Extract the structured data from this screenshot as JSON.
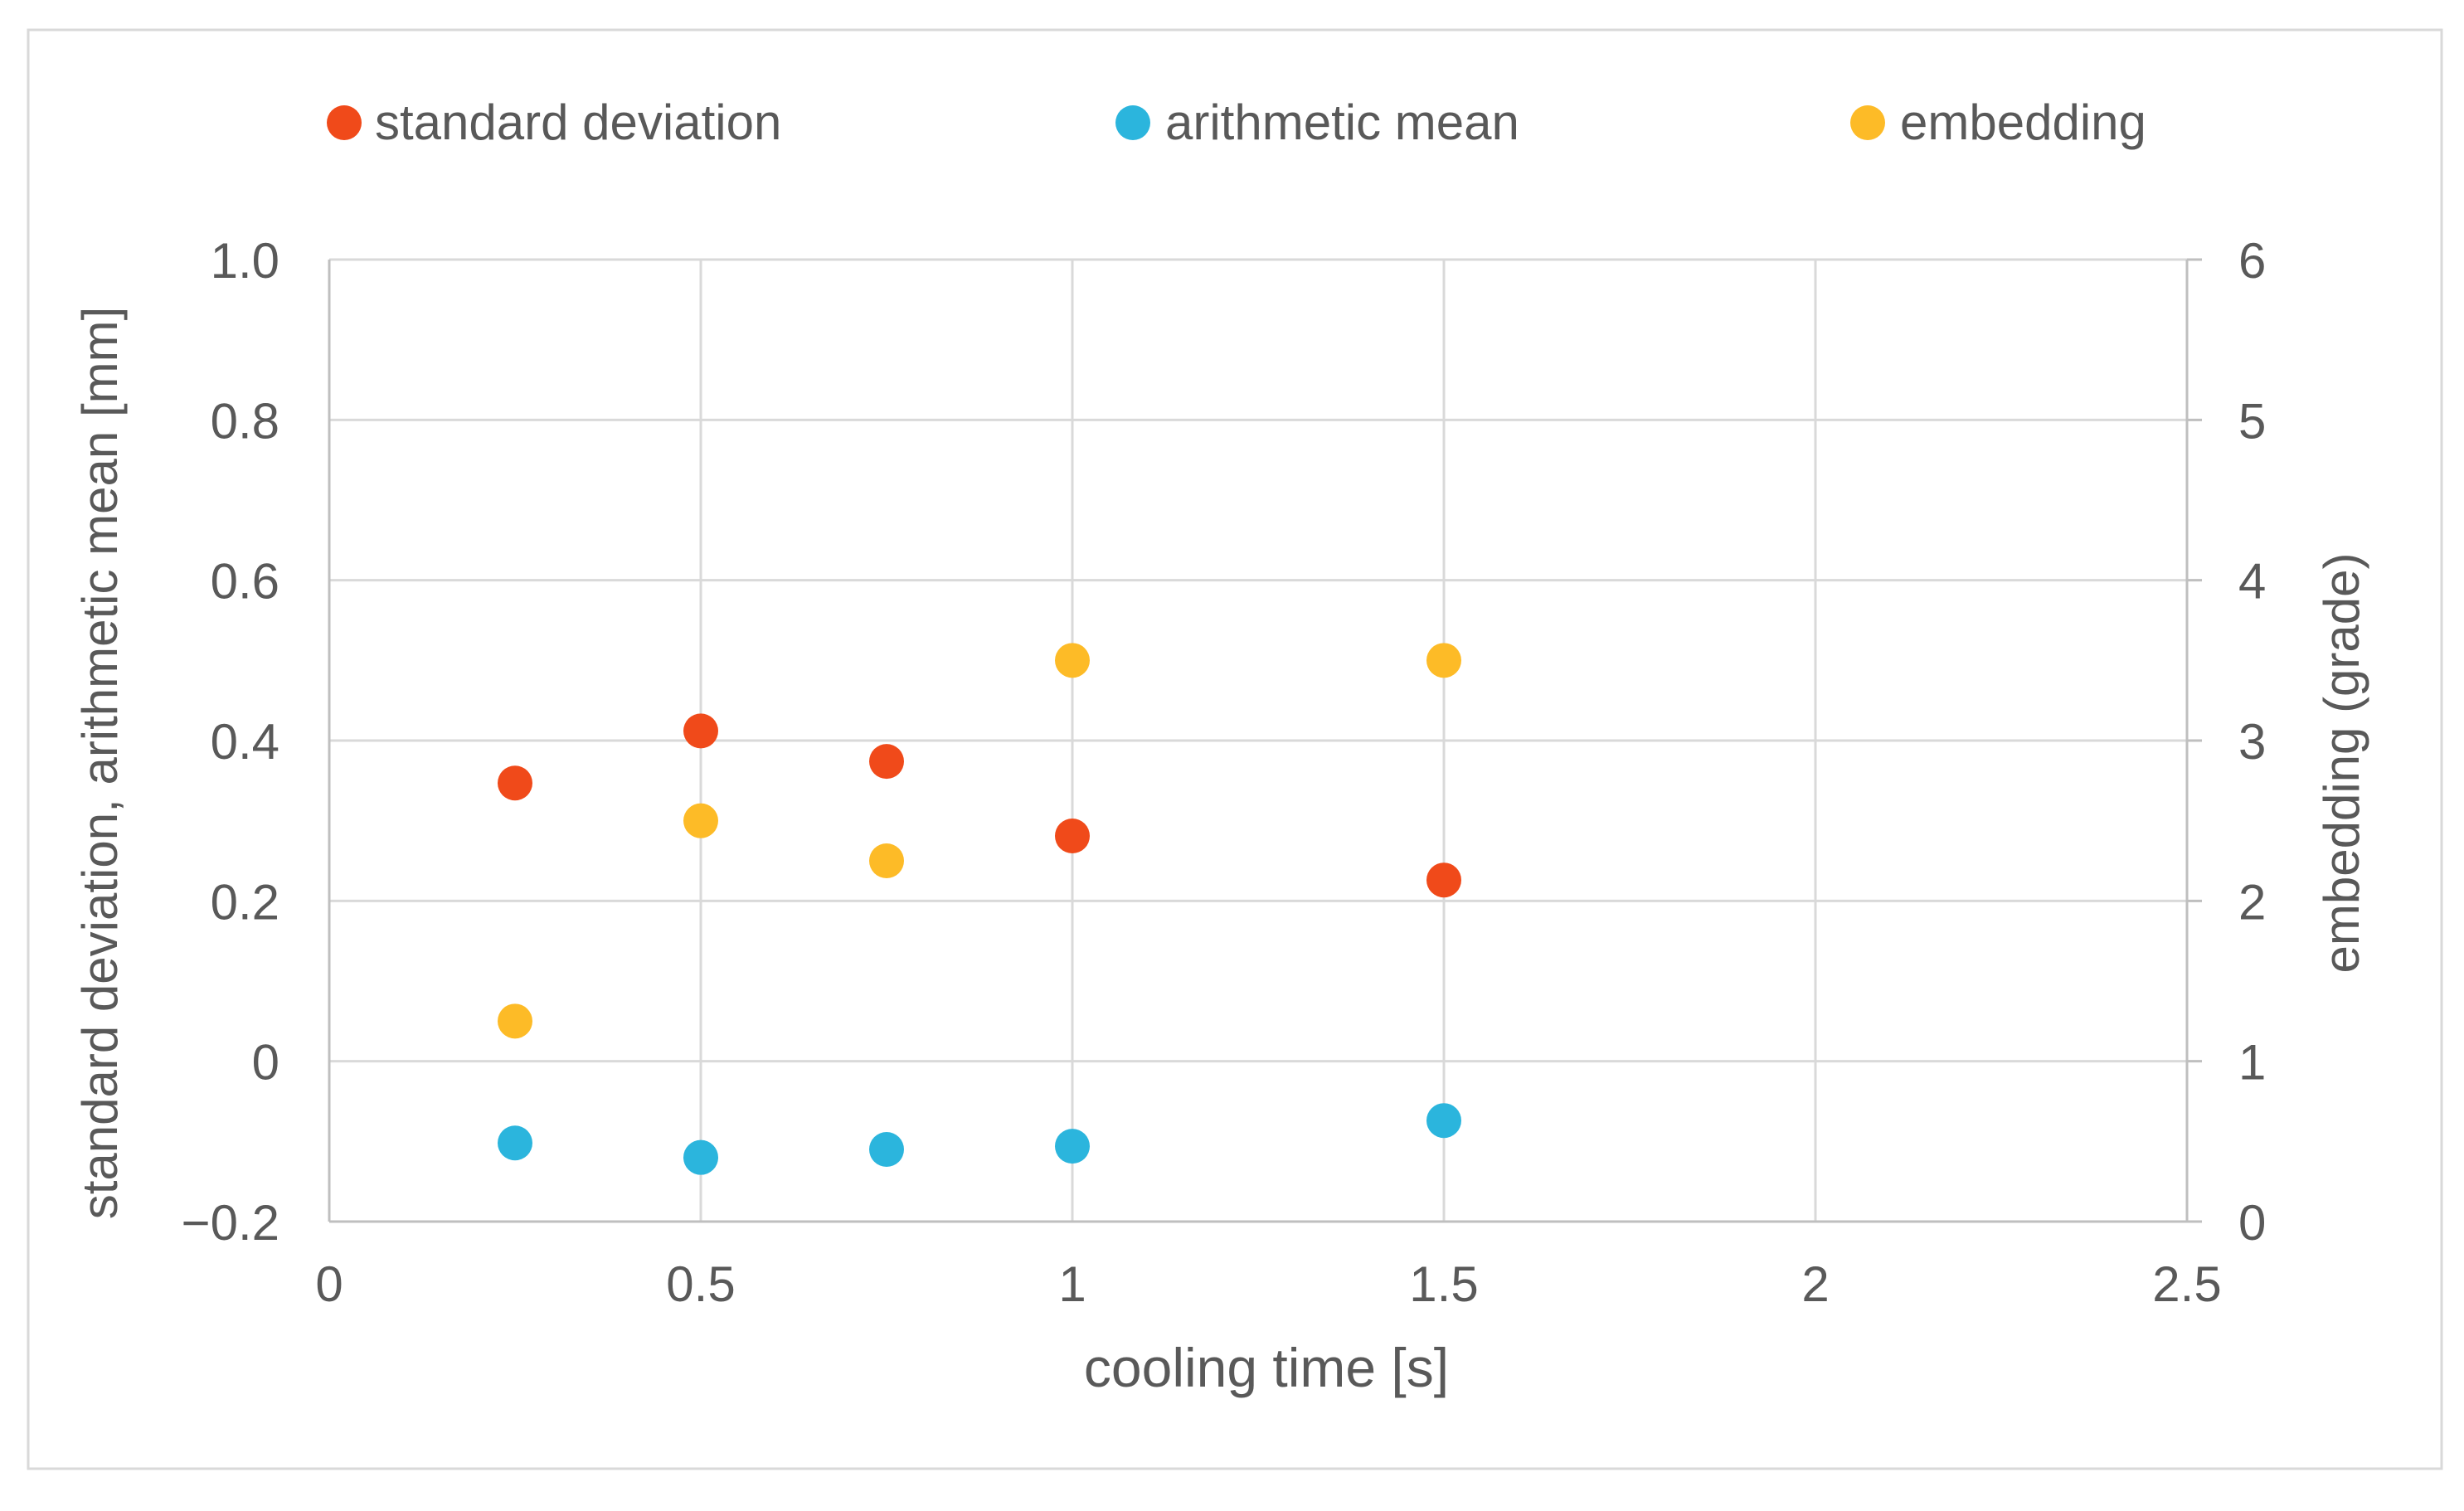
{
  "chart_data": {
    "type": "scatter",
    "title": "",
    "xlabel": "cooling time [s]",
    "ylabel": "standard deviation, arithmetic mean [mm]",
    "y2label": "embedding (grade)",
    "xlim": [
      0,
      2.5
    ],
    "ylim": [
      -0.2,
      1.0
    ],
    "y2lim": [
      0,
      6
    ],
    "x_ticks": [
      "0",
      "0.5",
      "1",
      "1.5",
      "2",
      "2.5"
    ],
    "x_tick_values": [
      0,
      0.5,
      1,
      1.5,
      2,
      2.5
    ],
    "y_ticks": [
      "−0.2",
      "0",
      "0.2",
      "0.4",
      "0.6",
      "0.8",
      "1.0"
    ],
    "y_tick_values": [
      -0.2,
      0,
      0.2,
      0.4,
      0.6,
      0.8,
      1.0
    ],
    "y2_ticks": [
      "0",
      "1",
      "2",
      "3",
      "4",
      "5",
      "6"
    ],
    "y2_tick_values": [
      0,
      1,
      2,
      3,
      4,
      5,
      6
    ],
    "grid": true,
    "legend_position": "top",
    "series": [
      {
        "name": "standard deviation",
        "axis": "left",
        "color": "#F04A1A",
        "x": [
          0.25,
          0.5,
          0.75,
          1.0,
          1.5
        ],
        "y": [
          0.347,
          0.412,
          0.374,
          0.281,
          0.226
        ]
      },
      {
        "name": "arithmetic mean",
        "axis": "left",
        "color": "#2BB5DD",
        "x": [
          0.25,
          0.5,
          0.75,
          1.0,
          1.5
        ],
        "y": [
          -0.102,
          -0.12,
          -0.11,
          -0.106,
          -0.074
        ]
      },
      {
        "name": "embedding",
        "axis": "right",
        "color": "#FDBB27",
        "x": [
          0.25,
          0.5,
          0.75,
          1.0,
          1.5
        ],
        "y": [
          1.25,
          2.5,
          2.25,
          3.5,
          3.5
        ]
      }
    ]
  }
}
